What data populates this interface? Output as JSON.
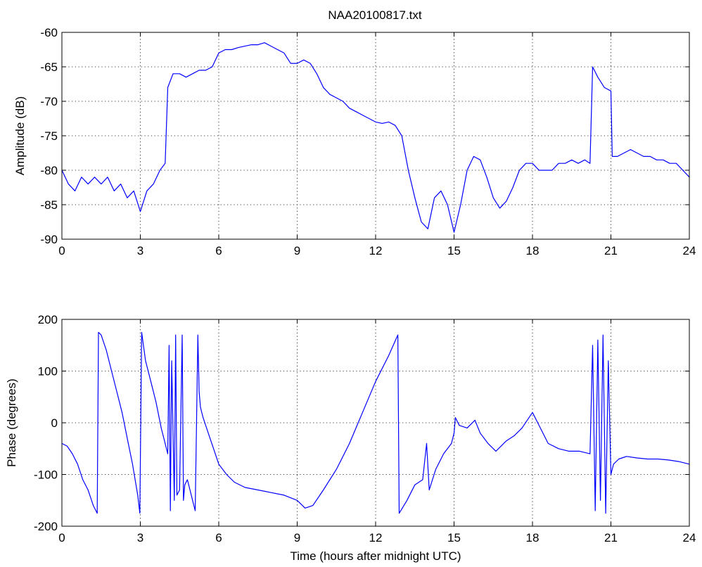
{
  "figure": {
    "title": "NAA20100817.txt"
  },
  "chart_data": [
    {
      "type": "line",
      "xlabel": "",
      "ylabel": "Amplitude (dB)",
      "xlim": [
        0,
        24
      ],
      "ylim": [
        -90,
        -60
      ],
      "xticks": [
        "0",
        "3",
        "6",
        "9",
        "12",
        "15",
        "18",
        "21",
        "24"
      ],
      "yticks": [
        "-90",
        "-85",
        "-80",
        "-75",
        "-70",
        "-65",
        "-60"
      ],
      "grid": true,
      "color": "#0000ff",
      "x": [
        0,
        0.25,
        0.5,
        0.75,
        1,
        1.25,
        1.5,
        1.75,
        2,
        2.25,
        2.5,
        2.75,
        3,
        3.25,
        3.5,
        3.75,
        3.95,
        4.05,
        4.25,
        4.5,
        4.75,
        5,
        5.25,
        5.5,
        5.75,
        6,
        6.25,
        6.5,
        6.75,
        7,
        7.25,
        7.5,
        7.75,
        8,
        8.25,
        8.5,
        8.75,
        9,
        9.25,
        9.5,
        9.75,
        10,
        10.25,
        10.5,
        10.75,
        11,
        11.25,
        11.5,
        11.75,
        12,
        12.25,
        12.5,
        12.75,
        13,
        13.25,
        13.5,
        13.75,
        14,
        14.25,
        14.5,
        14.75,
        15,
        15.25,
        15.5,
        15.75,
        16,
        16.25,
        16.5,
        16.75,
        17,
        17.25,
        17.5,
        17.75,
        18,
        18.25,
        18.5,
        18.75,
        19,
        19.25,
        19.5,
        19.75,
        20,
        20.2,
        20.3,
        20.5,
        20.75,
        21,
        21.05,
        21.25,
        21.5,
        21.75,
        22,
        22.25,
        22.5,
        22.75,
        23,
        23.25,
        23.5,
        23.75,
        24
      ],
      "y": [
        -80,
        -82,
        -83,
        -81,
        -82,
        -81,
        -82,
        -81,
        -83,
        -82,
        -84,
        -83,
        -86,
        -83,
        -82,
        -80,
        -79,
        -68,
        -66,
        -66,
        -66.5,
        -66,
        -65.5,
        -65.5,
        -65,
        -63,
        -62.5,
        -62.5,
        -62.2,
        -62,
        -61.8,
        -61.8,
        -61.5,
        -62,
        -62.5,
        -63,
        -64.5,
        -64.5,
        -64,
        -64.5,
        -66,
        -68,
        -69,
        -69.5,
        -70,
        -71,
        -71.5,
        -72,
        -72.5,
        -73,
        -73.2,
        -73,
        -73.5,
        -75,
        -80,
        -84,
        -87.5,
        -88.5,
        -84,
        -83,
        -85,
        -89,
        -85,
        -80,
        -78,
        -78.5,
        -81,
        -84,
        -85.5,
        -84.5,
        -82.5,
        -80,
        -79,
        -79,
        -80,
        -80,
        -80,
        -79,
        -79,
        -78.5,
        -79,
        -78.5,
        -79,
        -65,
        -66.5,
        -68,
        -68.5,
        -78,
        -78,
        -77.5,
        -77,
        -77.5,
        -78,
        -78,
        -78.5,
        -78.5,
        -79,
        -79,
        -80,
        -81
      ]
    },
    {
      "type": "line",
      "xlabel": "Time (hours after midnight UTC)",
      "ylabel": "Phase (degrees)",
      "xlim": [
        0,
        24
      ],
      "ylim": [
        -200,
        200
      ],
      "xticks": [
        "0",
        "3",
        "6",
        "9",
        "12",
        "15",
        "18",
        "21",
        "24"
      ],
      "yticks": [
        "-200",
        "-100",
        "0",
        "100",
        "200"
      ],
      "grid": true,
      "color": "#0000ff",
      "x": [
        0,
        0.2,
        0.4,
        0.6,
        0.8,
        1,
        1.2,
        1.35,
        1.4,
        1.5,
        1.7,
        1.9,
        2.1,
        2.3,
        2.5,
        2.7,
        2.9,
        2.98,
        3.05,
        3.2,
        3.4,
        3.6,
        3.8,
        4.05,
        4.1,
        4.15,
        4.2,
        4.3,
        4.35,
        4.4,
        4.5,
        4.6,
        4.65,
        4.7,
        4.8,
        4.9,
        5,
        5.1,
        5.2,
        5.25,
        5.3,
        5.4,
        5.6,
        5.8,
        6,
        6.3,
        6.6,
        7,
        7.5,
        8,
        8.5,
        9,
        9.3,
        9.6,
        10,
        10.5,
        11,
        11.5,
        12,
        12.5,
        12.85,
        12.9,
        13.2,
        13.5,
        13.8,
        13.95,
        14.05,
        14.3,
        14.6,
        14.9,
        15,
        15.05,
        15.2,
        15.5,
        15.8,
        16,
        16.3,
        16.6,
        17,
        17.3,
        17.6,
        18,
        18.3,
        18.6,
        19,
        19.4,
        19.8,
        20.2,
        20.3,
        20.4,
        20.5,
        20.6,
        20.7,
        20.8,
        20.9,
        21,
        21.1,
        21.3,
        21.6,
        22,
        22.4,
        22.8,
        23.2,
        23.6,
        24
      ],
      "y": [
        -40,
        -45,
        -60,
        -80,
        -110,
        -130,
        -160,
        -175,
        175,
        170,
        140,
        100,
        60,
        20,
        -30,
        -80,
        -140,
        -175,
        175,
        120,
        80,
        40,
        -10,
        -60,
        150,
        -170,
        120,
        -150,
        170,
        -140,
        -130,
        170,
        -150,
        -120,
        -110,
        -130,
        -150,
        -170,
        170,
        60,
        30,
        10,
        -20,
        -50,
        -80,
        -100,
        -115,
        -125,
        -130,
        -135,
        -140,
        -150,
        -165,
        -160,
        -130,
        -90,
        -40,
        20,
        80,
        130,
        170,
        -175,
        -150,
        -120,
        -110,
        -40,
        -130,
        -90,
        -60,
        -40,
        -20,
        10,
        -5,
        -10,
        5,
        -20,
        -40,
        -55,
        -35,
        -25,
        -10,
        20,
        -10,
        -40,
        -50,
        -55,
        -55,
        -60,
        150,
        -170,
        160,
        -150,
        170,
        -175,
        120,
        -100,
        -80,
        -70,
        -65,
        -68,
        -70,
        -70,
        -72,
        -75,
        -80
      ]
    }
  ]
}
